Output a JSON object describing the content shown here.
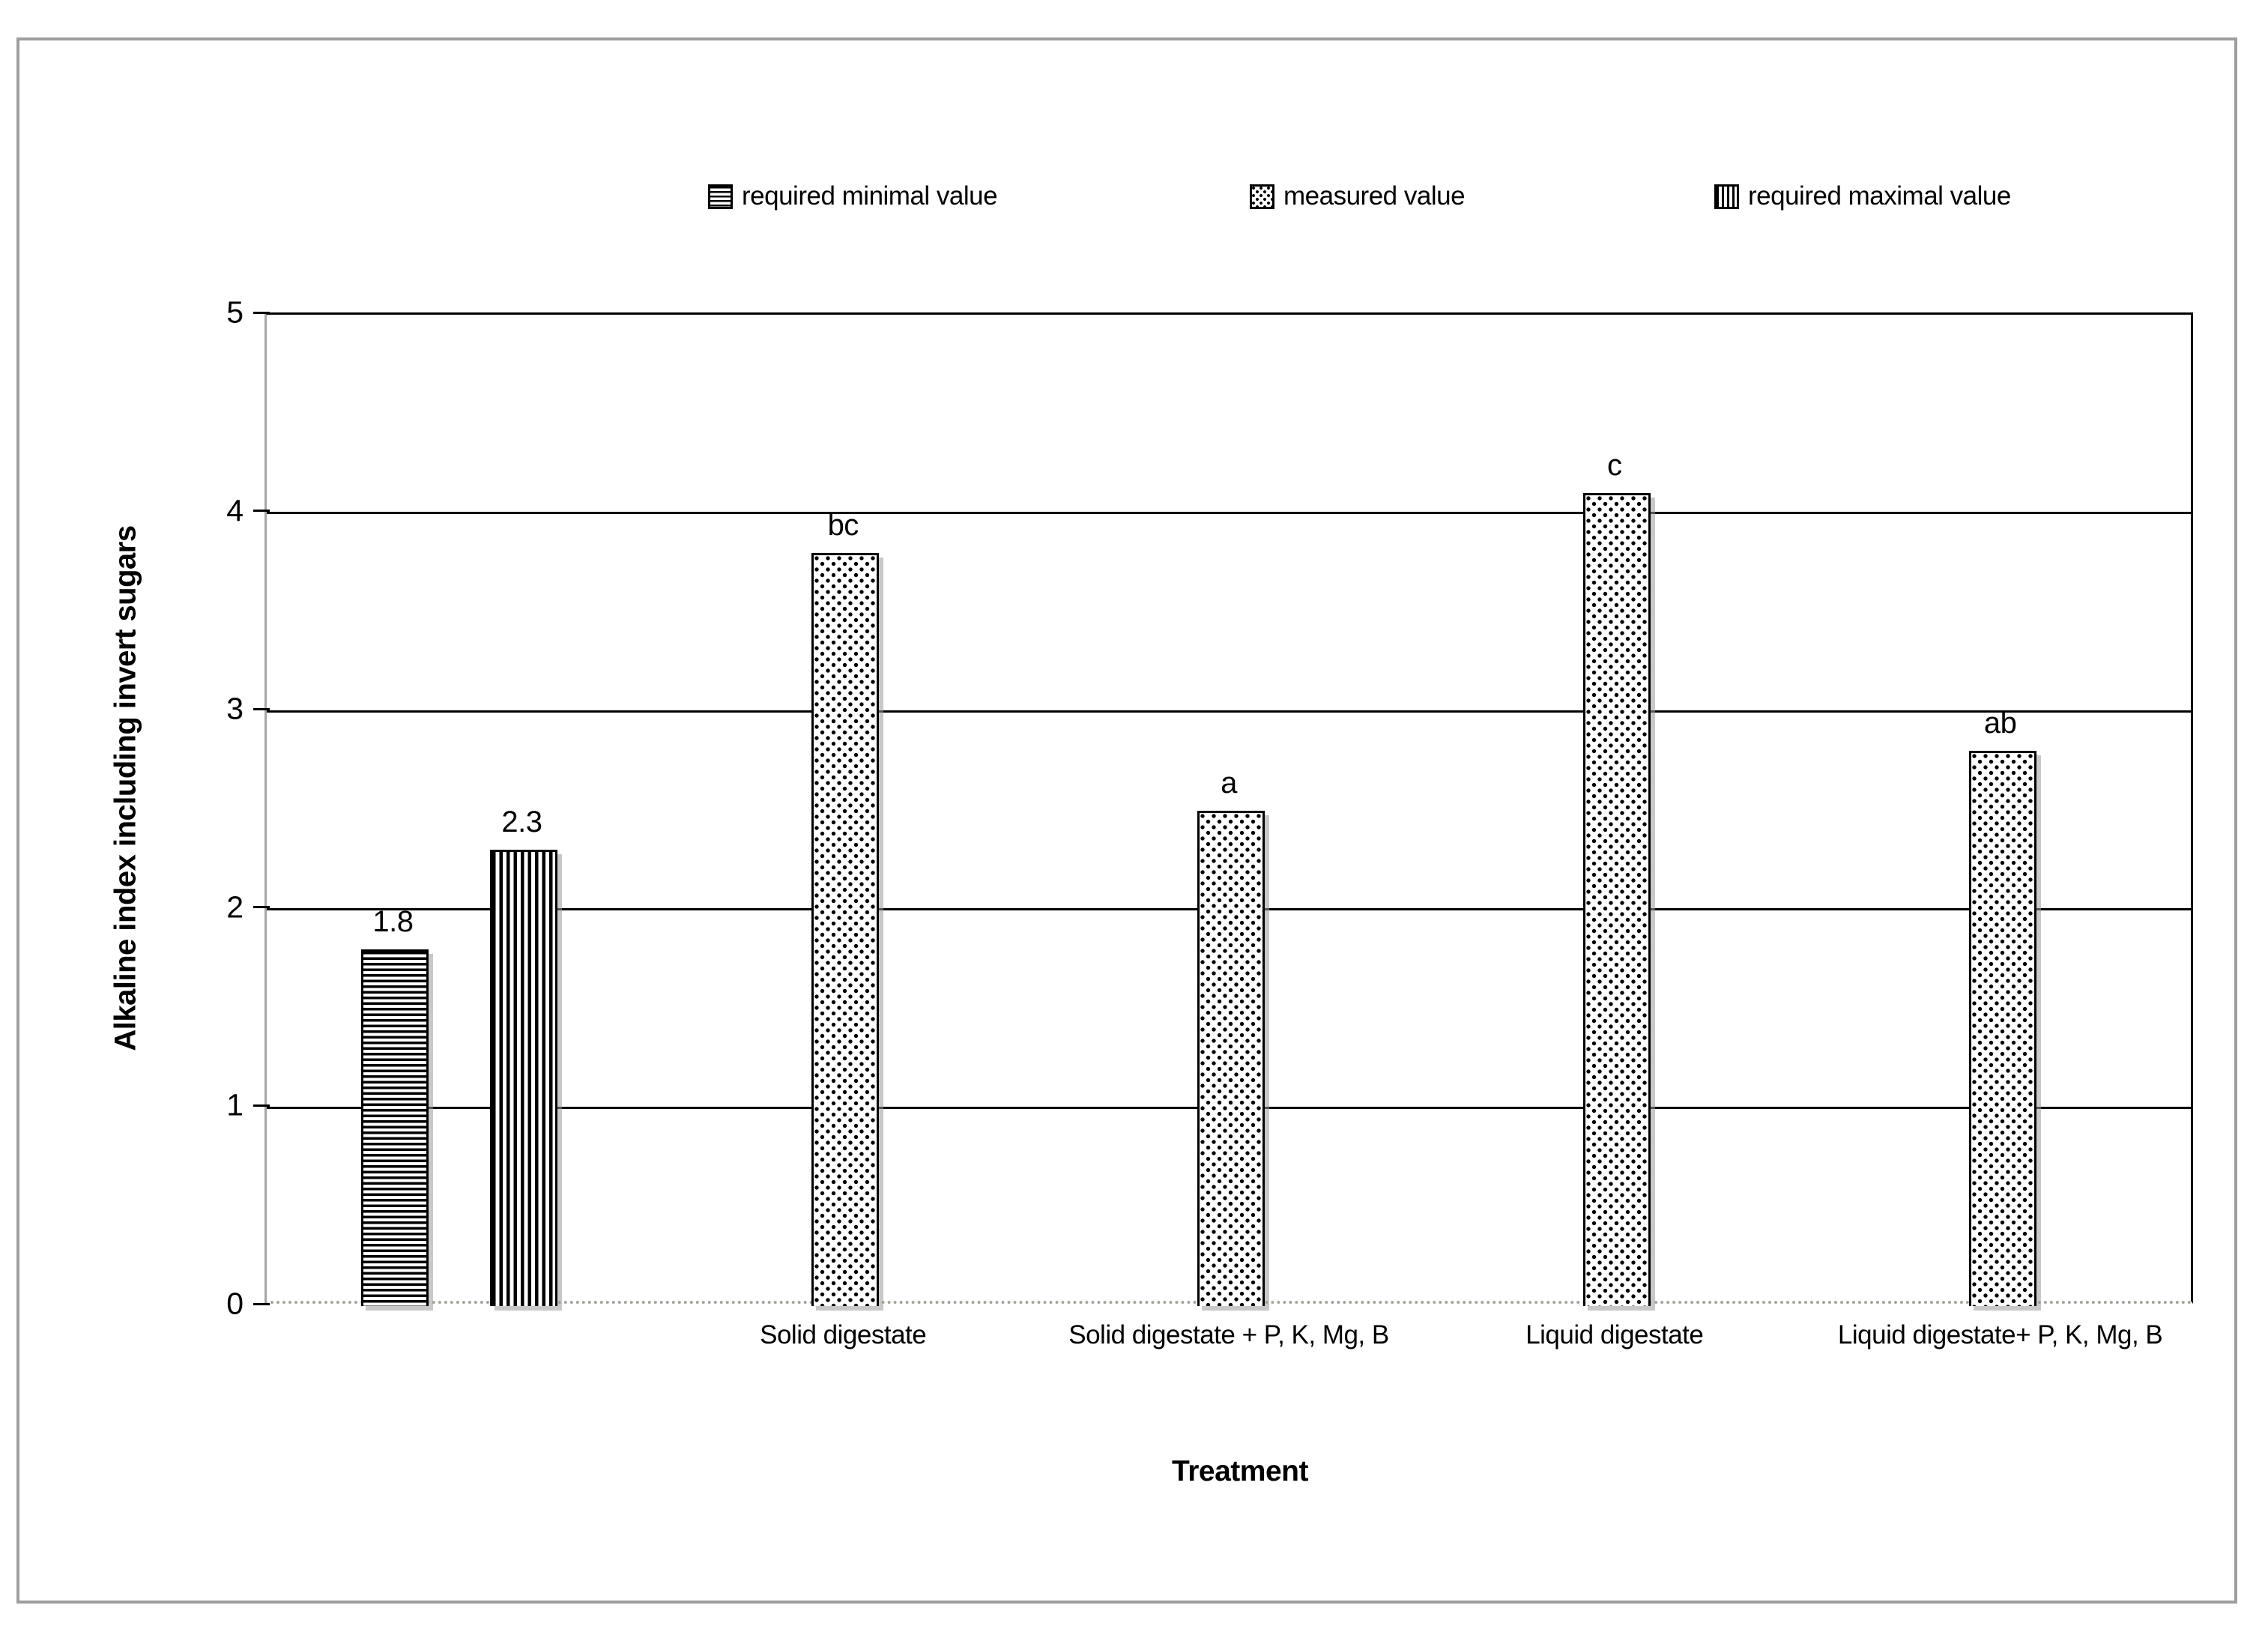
{
  "chart_data": {
    "type": "bar",
    "title": "",
    "xlabel": "Treatment",
    "ylabel": "Alkaline index including invert sugars",
    "ylim": [
      0,
      5
    ],
    "yticks": [
      0,
      1,
      2,
      3,
      4,
      5
    ],
    "grid": true,
    "legend_position": "top",
    "categories": [
      "",
      "Solid digestate",
      "Solid digestate  + P, K, Mg, B",
      "Liquid digestate",
      "Liquid digestate+ P, K, Mg, B"
    ],
    "series": [
      {
        "name": "required minimal value",
        "pattern": "hstripes",
        "values": [
          1.8,
          null,
          null,
          null,
          null
        ],
        "labels": [
          "1.8",
          null,
          null,
          null,
          null
        ]
      },
      {
        "name": "measured value",
        "pattern": "dots",
        "values": [
          null,
          3.8,
          2.5,
          4.1,
          2.8
        ],
        "labels": [
          null,
          "bc",
          "a",
          "c",
          "ab"
        ]
      },
      {
        "name": "required maximal value",
        "pattern": "vstripes",
        "values": [
          2.3,
          null,
          null,
          null,
          null
        ],
        "labels": [
          "2.3",
          null,
          null,
          null,
          null
        ]
      }
    ]
  },
  "colors": {
    "ink": "#000000",
    "axis_gray": "#a6a6a6",
    "figure_border": "#9e9e9e",
    "shadow": "#9b9b9b",
    "background": "#ffffff"
  }
}
